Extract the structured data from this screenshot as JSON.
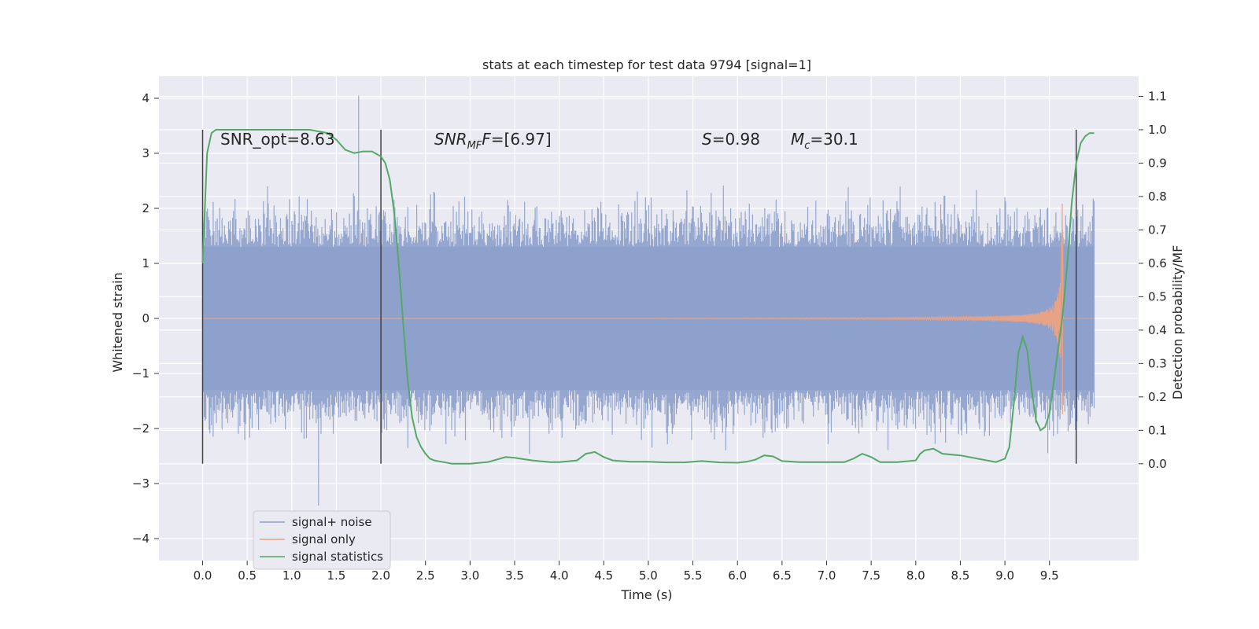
{
  "chart_data": {
    "type": "line",
    "title": "stats at each timestep for test data 9794 [signal=1]",
    "xlabel": "Time (s)",
    "ylabel": "Whitened strain",
    "y2label": "Detection probability/MF",
    "xlim": [
      -0.49,
      10.5
    ],
    "ylim": [
      -4.4,
      4.4
    ],
    "y2lim": [
      -0.29,
      1.16
    ],
    "grid": true,
    "x_ticks": [
      "0.0",
      "0.5",
      "1.0",
      "1.5",
      "2.0",
      "2.5",
      "3.0",
      "3.5",
      "4.0",
      "4.5",
      "5.0",
      "5.5",
      "6.0",
      "6.5",
      "7.0",
      "7.5",
      "8.0",
      "8.5",
      "9.0",
      "9.5"
    ],
    "y_ticks": [
      "4",
      "3",
      "2",
      "1",
      "0",
      "−1",
      "−2",
      "−3",
      "−4"
    ],
    "y2_ticks": [
      "1.1",
      "1.0",
      "0.9",
      "0.8",
      "0.7",
      "0.6",
      "0.5",
      "0.4",
      "0.3",
      "0.2",
      "0.1",
      "0.0"
    ],
    "annotations": {
      "snr_opt": "SNR_opt=8.63",
      "snr_mf": "SNR",
      "snr_mf_sub": "MF",
      "snr_mf_val": "=[6.97]",
      "s_label": "S",
      "s_val": "=0.98",
      "mc_label": "M",
      "mc_sub": "c",
      "mc_val": "=30.1"
    },
    "vertical_markers": [
      0.0,
      2.0,
      9.8
    ],
    "series": [
      {
        "name": "signal+ noise",
        "color": "#8da0cb",
        "note_range_x": [
          0.0,
          10.0
        ],
        "typical_amplitude": 1.3,
        "max": 4.05,
        "min": -3.4
      },
      {
        "name": "signal only",
        "color": "#e8a286",
        "chirp_peak_time": 9.65,
        "chirp_peak_amplitude": 2.1
      },
      {
        "name": "signal statistics",
        "color": "#55a868",
        "x": [
          0.0,
          0.05,
          0.1,
          0.15,
          0.2,
          0.3,
          0.5,
          0.8,
          1.0,
          1.2,
          1.3,
          1.4,
          1.5,
          1.6,
          1.7,
          1.8,
          1.9,
          2.0,
          2.05,
          2.1,
          2.15,
          2.2,
          2.25,
          2.3,
          2.35,
          2.4,
          2.45,
          2.5,
          2.55,
          2.6,
          2.7,
          2.8,
          2.9,
          3.0,
          3.2,
          3.4,
          3.5,
          3.7,
          3.9,
          4.0,
          4.2,
          4.3,
          4.4,
          4.5,
          4.6,
          4.8,
          5.0,
          5.2,
          5.4,
          5.6,
          5.8,
          6.0,
          6.1,
          6.2,
          6.3,
          6.4,
          6.5,
          6.7,
          7.0,
          7.2,
          7.3,
          7.4,
          7.5,
          7.6,
          7.8,
          8.0,
          8.05,
          8.1,
          8.2,
          8.3,
          8.5,
          8.8,
          8.9,
          9.0,
          9.05,
          9.1,
          9.15,
          9.2,
          9.25,
          9.3,
          9.35,
          9.4,
          9.45,
          9.5,
          9.55,
          9.6,
          9.65,
          9.7,
          9.75,
          9.8,
          9.85,
          9.9,
          9.95,
          10.0
        ],
        "values": [
          0.6,
          0.93,
          0.99,
          1.0,
          1.0,
          1.0,
          1.0,
          1.0,
          1.0,
          1.0,
          0.995,
          0.99,
          0.97,
          0.94,
          0.93,
          0.935,
          0.935,
          0.92,
          0.9,
          0.85,
          0.75,
          0.6,
          0.42,
          0.25,
          0.14,
          0.08,
          0.05,
          0.03,
          0.015,
          0.01,
          0.005,
          0.0,
          0.0,
          0.0,
          0.005,
          0.02,
          0.018,
          0.01,
          0.005,
          0.005,
          0.01,
          0.03,
          0.035,
          0.02,
          0.01,
          0.006,
          0.006,
          0.004,
          0.004,
          0.008,
          0.004,
          0.003,
          0.006,
          0.012,
          0.025,
          0.022,
          0.008,
          0.005,
          0.005,
          0.005,
          0.015,
          0.03,
          0.02,
          0.005,
          0.005,
          0.01,
          0.03,
          0.04,
          0.045,
          0.03,
          0.025,
          0.01,
          0.005,
          0.015,
          0.05,
          0.18,
          0.33,
          0.38,
          0.34,
          0.22,
          0.13,
          0.1,
          0.11,
          0.15,
          0.25,
          0.35,
          0.45,
          0.6,
          0.78,
          0.9,
          0.96,
          0.98,
          0.99,
          0.99
        ]
      }
    ],
    "legend": {
      "placement": "lower-left",
      "entries": [
        "signal+ noise",
        "signal only",
        "signal statistics"
      ]
    }
  },
  "colors": {
    "plot_bg": "#eaeaf2",
    "grid": "#ffffff",
    "noise": "#8da0cb",
    "signal": "#e8a286",
    "stats": "#55a868",
    "marker": "#404040"
  }
}
